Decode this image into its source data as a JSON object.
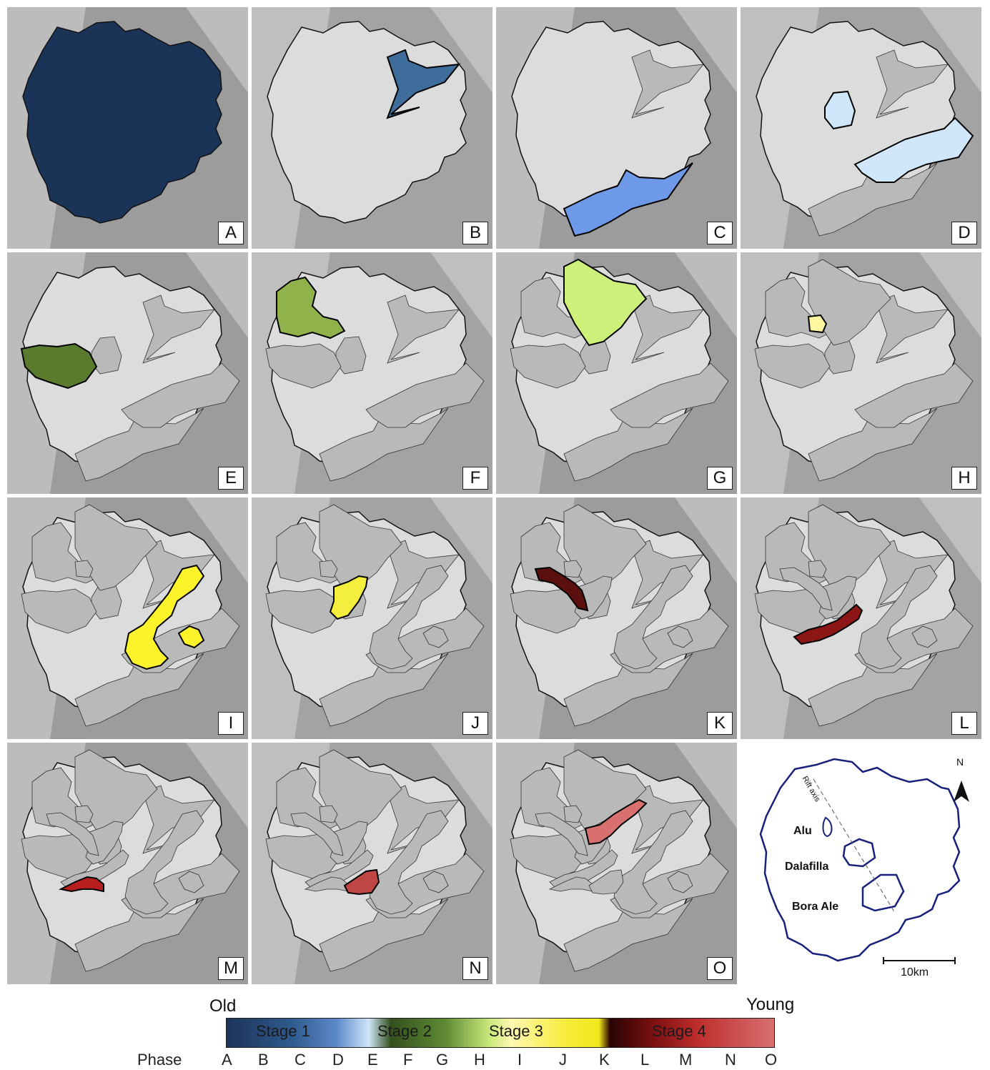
{
  "panels": [
    {
      "label": "A"
    },
    {
      "label": "B"
    },
    {
      "label": "C"
    },
    {
      "label": "D"
    },
    {
      "label": "E"
    },
    {
      "label": "F"
    },
    {
      "label": "G"
    },
    {
      "label": "H"
    },
    {
      "label": "I"
    },
    {
      "label": "J"
    },
    {
      "label": "K"
    },
    {
      "label": "L"
    },
    {
      "label": "M"
    },
    {
      "label": "N"
    },
    {
      "label": "O"
    }
  ],
  "colors": {
    "A": "#1b3357",
    "B": "#3e6d9c",
    "C": "#6e98e8",
    "D": "#cfe6fb",
    "E": "#5a7a2e",
    "F": "#8fb24a",
    "G": "#cdf07a",
    "H": "#fff6a0",
    "I": "#fcf32a",
    "J": "#f4ee3c",
    "K": "#5c0f0f",
    "L": "#8c1515",
    "M": "#b81e1e",
    "N": "#c04545",
    "O": "#d97070",
    "base": "#dcdcdc",
    "older": "#b9b9b9",
    "outline": "#111111",
    "inset": "#17207a"
  },
  "inset": {
    "north": "N",
    "rift": "Rift axis",
    "alu": "Alu",
    "dalafilla": "Dalafilla",
    "bora": "Bora Ale",
    "scale": "10km"
  },
  "legend": {
    "old": "Old",
    "young": "Young",
    "phase_title": "Phase",
    "stages": [
      "Stage 1",
      "Stage 2",
      "Stage 3",
      "Stage 4"
    ],
    "phases": [
      "A",
      "B",
      "C",
      "D",
      "E",
      "F",
      "G",
      "H",
      "I",
      "J",
      "K",
      "L",
      "M",
      "N",
      "O"
    ]
  }
}
